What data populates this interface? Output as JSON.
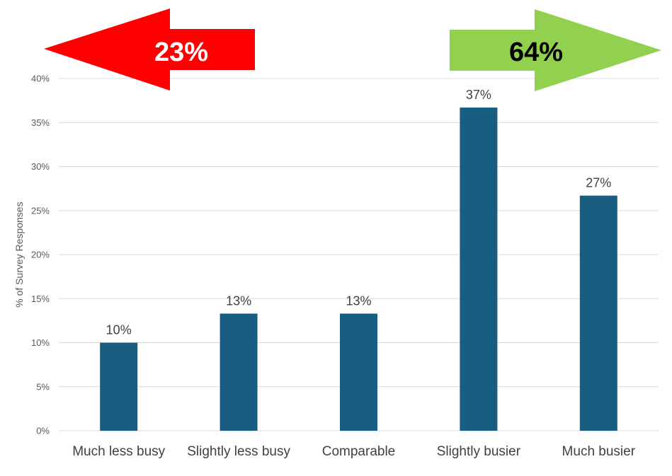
{
  "chart_data": {
    "type": "bar",
    "categories": [
      "Much less busy",
      "Slightly less busy",
      "Comparable",
      "Slightly busier",
      "Much busier"
    ],
    "values": [
      10,
      13.3,
      13.3,
      36.7,
      26.7
    ],
    "data_labels": [
      "10%",
      "13%",
      "13%",
      "37%",
      "27%"
    ],
    "ylabel": "% of Survey Responses",
    "xlabel": "",
    "title": "",
    "ylim": [
      0,
      40
    ],
    "y_ticks": [
      0,
      5,
      10,
      15,
      20,
      25,
      30,
      35,
      40
    ],
    "y_tick_labels": [
      "0%",
      "5%",
      "10%",
      "15%",
      "20%",
      "25%",
      "30%",
      "35%",
      "40%"
    ],
    "grid": true,
    "bar_color": "#175E82",
    "annotations": [
      {
        "name": "less-busy-arrow",
        "text": "23%",
        "direction": "left",
        "color": "#FF0000",
        "text_color": "#FFFFFF"
      },
      {
        "name": "busier-arrow",
        "text": "64%",
        "direction": "right",
        "color": "#92D050",
        "text_color": "#000000"
      }
    ]
  }
}
